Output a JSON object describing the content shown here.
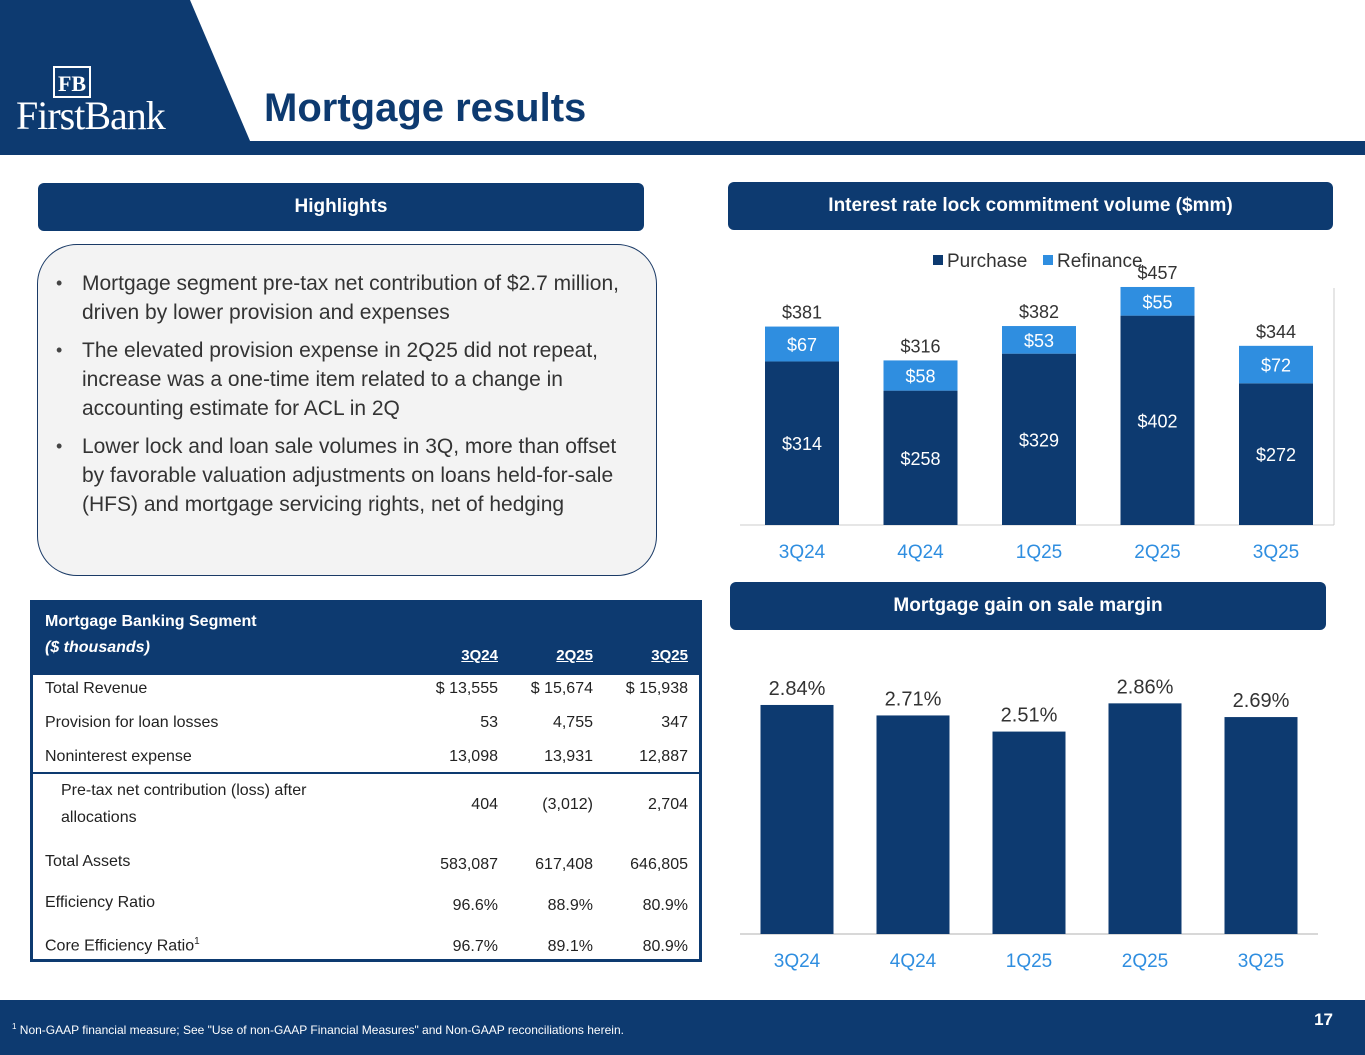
{
  "header": {
    "logo_initials": "FB",
    "logo_name": "FirstBank",
    "title": "Mortgage results"
  },
  "highlights": {
    "heading": "Highlights",
    "bullets": [
      "Mortgage segment pre-tax net contribution of $2.7 million, driven by lower provision and expenses",
      "The elevated provision expense in 2Q25 did not repeat, increase was a one-time item related to a change in accounting estimate for ACL in 2Q",
      "Lower lock and loan sale volumes in 3Q, more than offset by favorable valuation adjustments on loans held-for-sale (HFS) and mortgage servicing rights, net of hedging"
    ]
  },
  "segment_table": {
    "title": "Mortgage Banking Segment",
    "subtitle": "($ thousands)",
    "columns": [
      "3Q24",
      "2Q25",
      "3Q25"
    ],
    "rows": [
      {
        "label": "Total Revenue",
        "values": [
          "$  13,555",
          "$  15,674",
          "$  15,938"
        ]
      },
      {
        "label": "Provision for loan losses",
        "values": [
          "53",
          "4,755",
          "347"
        ]
      },
      {
        "label": "Noninterest expense",
        "values": [
          "13,098",
          "13,931",
          "12,887"
        ]
      },
      {
        "label": "Pre-tax net contribution (loss) after allocations",
        "label_line1": "Pre-tax net contribution (loss) after",
        "label_line2": "allocations",
        "values": [
          "404",
          "(3,012)",
          "2,704"
        ]
      },
      {
        "label": "Total Assets",
        "values": [
          "583,087",
          "617,408",
          "646,805"
        ]
      },
      {
        "label": "Efficiency Ratio",
        "values": [
          "96.6%",
          "88.9%",
          "80.9%"
        ]
      },
      {
        "label": "Core Efficiency Ratio",
        "label_sup": "1",
        "values": [
          "96.7%",
          "89.1%",
          "80.9%"
        ]
      }
    ]
  },
  "chart_data": [
    {
      "type": "bar",
      "stacked": true,
      "title": "Interest rate lock commitment volume ($mm)",
      "categories": [
        "3Q24",
        "4Q24",
        "1Q25",
        "2Q25",
        "3Q25"
      ],
      "series": [
        {
          "name": "Purchase",
          "values": [
            314,
            258,
            329,
            402,
            272
          ],
          "labels": [
            "$314",
            "$258",
            "$329",
            "$402",
            "$272"
          ],
          "color": "#0d3a70"
        },
        {
          "name": "Refinance",
          "values": [
            67,
            58,
            53,
            55,
            72
          ],
          "labels": [
            "$67",
            "$58",
            "$53",
            "$55",
            "$72"
          ],
          "color": "#2f8ee0"
        }
      ],
      "totals": [
        381,
        316,
        382,
        457,
        344
      ],
      "total_labels": [
        "$381",
        "$316",
        "$382",
        "$457",
        "$344"
      ],
      "legend": "top",
      "ylim": [
        0,
        480
      ]
    },
    {
      "type": "bar",
      "title": "Mortgage gain on sale margin",
      "categories": [
        "3Q24",
        "4Q24",
        "1Q25",
        "2Q25",
        "3Q25"
      ],
      "values": [
        2.84,
        2.71,
        2.51,
        2.86,
        2.69
      ],
      "labels": [
        "2.84%",
        "2.71%",
        "2.51%",
        "2.86%",
        "2.69%"
      ],
      "color": "#0d3a70",
      "ylim": [
        0,
        3.1
      ]
    }
  ],
  "footer": {
    "note_sup": "1",
    "note": " Non-GAAP financial measure; See \"Use of non-GAAP Financial Measures\" and Non-GAAP reconciliations herein.",
    "page_number": "17"
  }
}
